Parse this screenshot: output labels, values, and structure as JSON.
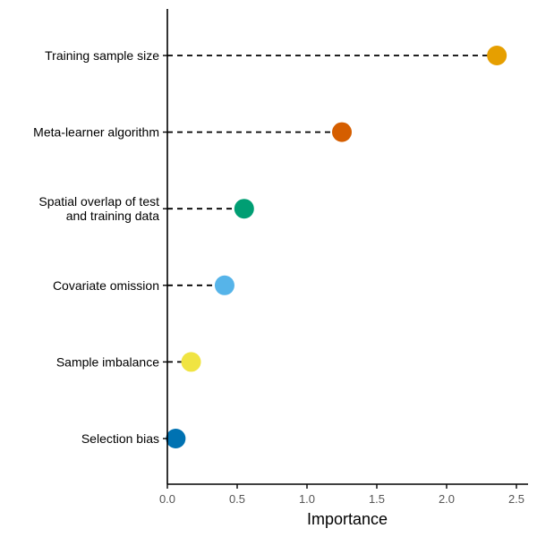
{
  "chart_data": {
    "type": "scatter",
    "style": "lollipop",
    "title": "",
    "xlabel": "Importance",
    "ylabel": "",
    "xlim": [
      0,
      2.6
    ],
    "x_ticks": [
      0,
      0.5,
      1,
      1.5,
      2,
      2.5
    ],
    "x_tick_labels": [
      "0.0",
      "0.5",
      "1.0",
      "1.5",
      "2.0",
      "2.5"
    ],
    "grid": false,
    "legend": "none",
    "points": [
      {
        "label_lines": [
          "Training sample size"
        ],
        "value": 2.36,
        "color": "#E69F00"
      },
      {
        "label_lines": [
          "Meta-learner algorithm"
        ],
        "value": 1.25,
        "color": "#D55E00"
      },
      {
        "label_lines": [
          "Spatial overlap of test",
          "and training data"
        ],
        "value": 0.55,
        "color": "#009E73"
      },
      {
        "label_lines": [
          "Covariate omission"
        ],
        "value": 0.41,
        "color": "#56B4E9"
      },
      {
        "label_lines": [
          "Sample imbalance"
        ],
        "value": 0.17,
        "color": "#F0E442"
      },
      {
        "label_lines": [
          "Selection bias"
        ],
        "value": 0.06,
        "color": "#0072B2"
      }
    ]
  }
}
